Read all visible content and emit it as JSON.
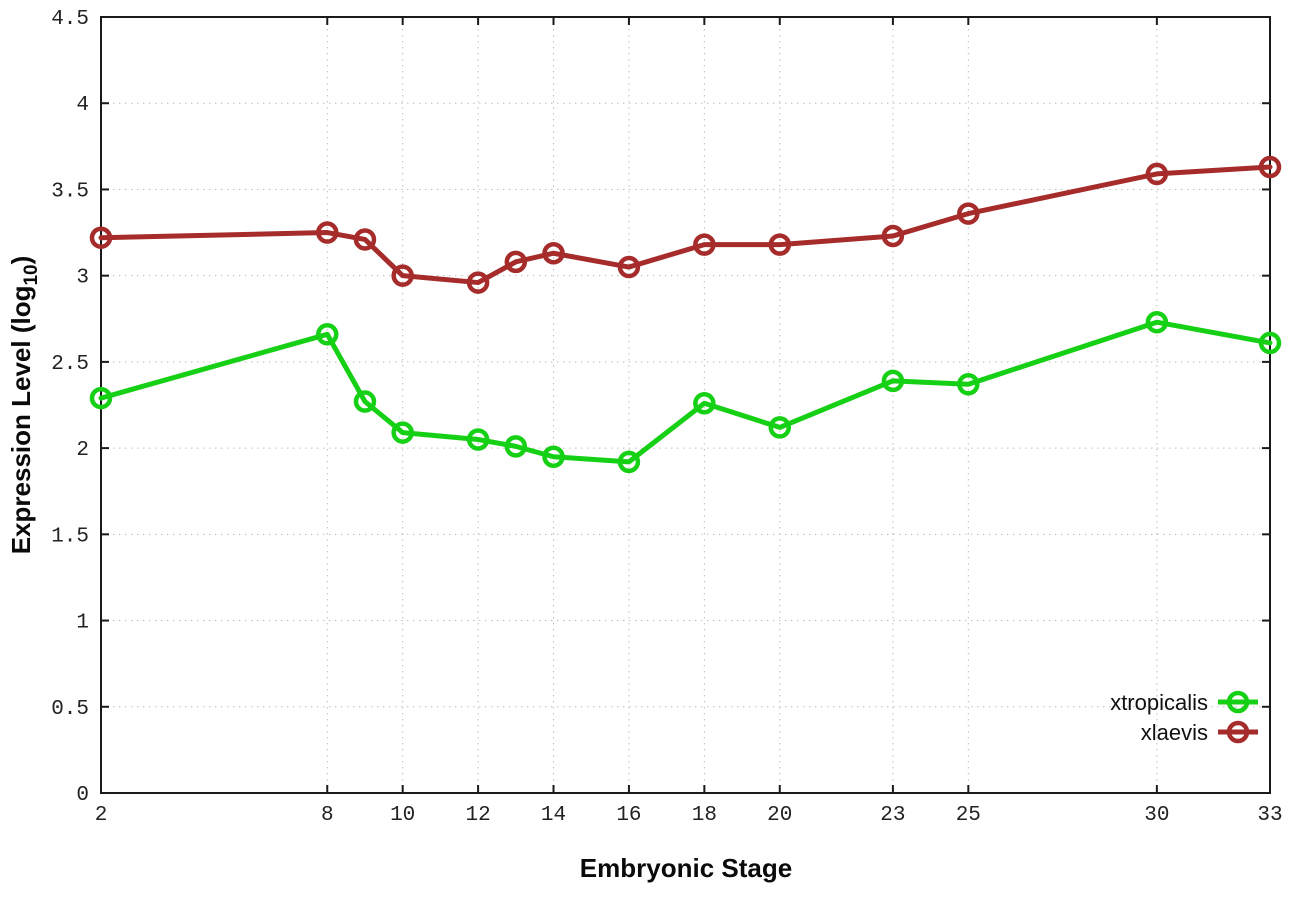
{
  "chart_data": {
    "type": "line",
    "title": "",
    "xlabel": "Embryonic Stage",
    "ylabel": "Expression Level (log10)",
    "ylabel_parts": {
      "main": "Expression Level (log",
      "sub": "10",
      "end": ")"
    },
    "xlim": [
      2,
      33
    ],
    "ylim": [
      0,
      4.5
    ],
    "x_ticks": [
      2,
      8,
      10,
      12,
      14,
      16,
      18,
      20,
      23,
      25,
      30,
      33
    ],
    "x_tick_labels": [
      "2",
      "8",
      "10",
      "12",
      "14",
      "16",
      "18",
      "20",
      "23",
      "25",
      "30",
      "33"
    ],
    "y_ticks": [
      0,
      0.5,
      1,
      1.5,
      2,
      2.5,
      3,
      3.5,
      4,
      4.5
    ],
    "y_tick_labels": [
      "0",
      "0.5",
      "1",
      "1.5",
      "2",
      "2.5",
      "3",
      "3.5",
      "4",
      "4.5"
    ],
    "grid": true,
    "legend_position": "bottom-right-inside",
    "x": [
      2,
      8,
      9,
      10,
      12,
      13,
      14,
      16,
      18,
      20,
      23,
      25,
      30,
      33
    ],
    "series": [
      {
        "name": "xtropicalis",
        "color": "#15d015",
        "marker": "open-circle",
        "values": [
          2.29,
          2.66,
          2.27,
          2.09,
          2.05,
          2.01,
          1.95,
          1.92,
          2.26,
          2.12,
          2.39,
          2.37,
          2.73,
          2.61
        ]
      },
      {
        "name": "xlaevis",
        "color": "#a62b2b",
        "marker": "open-circle",
        "values": [
          3.22,
          3.25,
          3.21,
          3.0,
          2.96,
          3.08,
          3.13,
          3.05,
          3.18,
          3.18,
          3.23,
          3.36,
          3.59,
          3.63
        ]
      }
    ],
    "colors": {
      "background": "#ffffff",
      "axis": "#1a1a1a",
      "grid": "#bdbdbd"
    }
  }
}
